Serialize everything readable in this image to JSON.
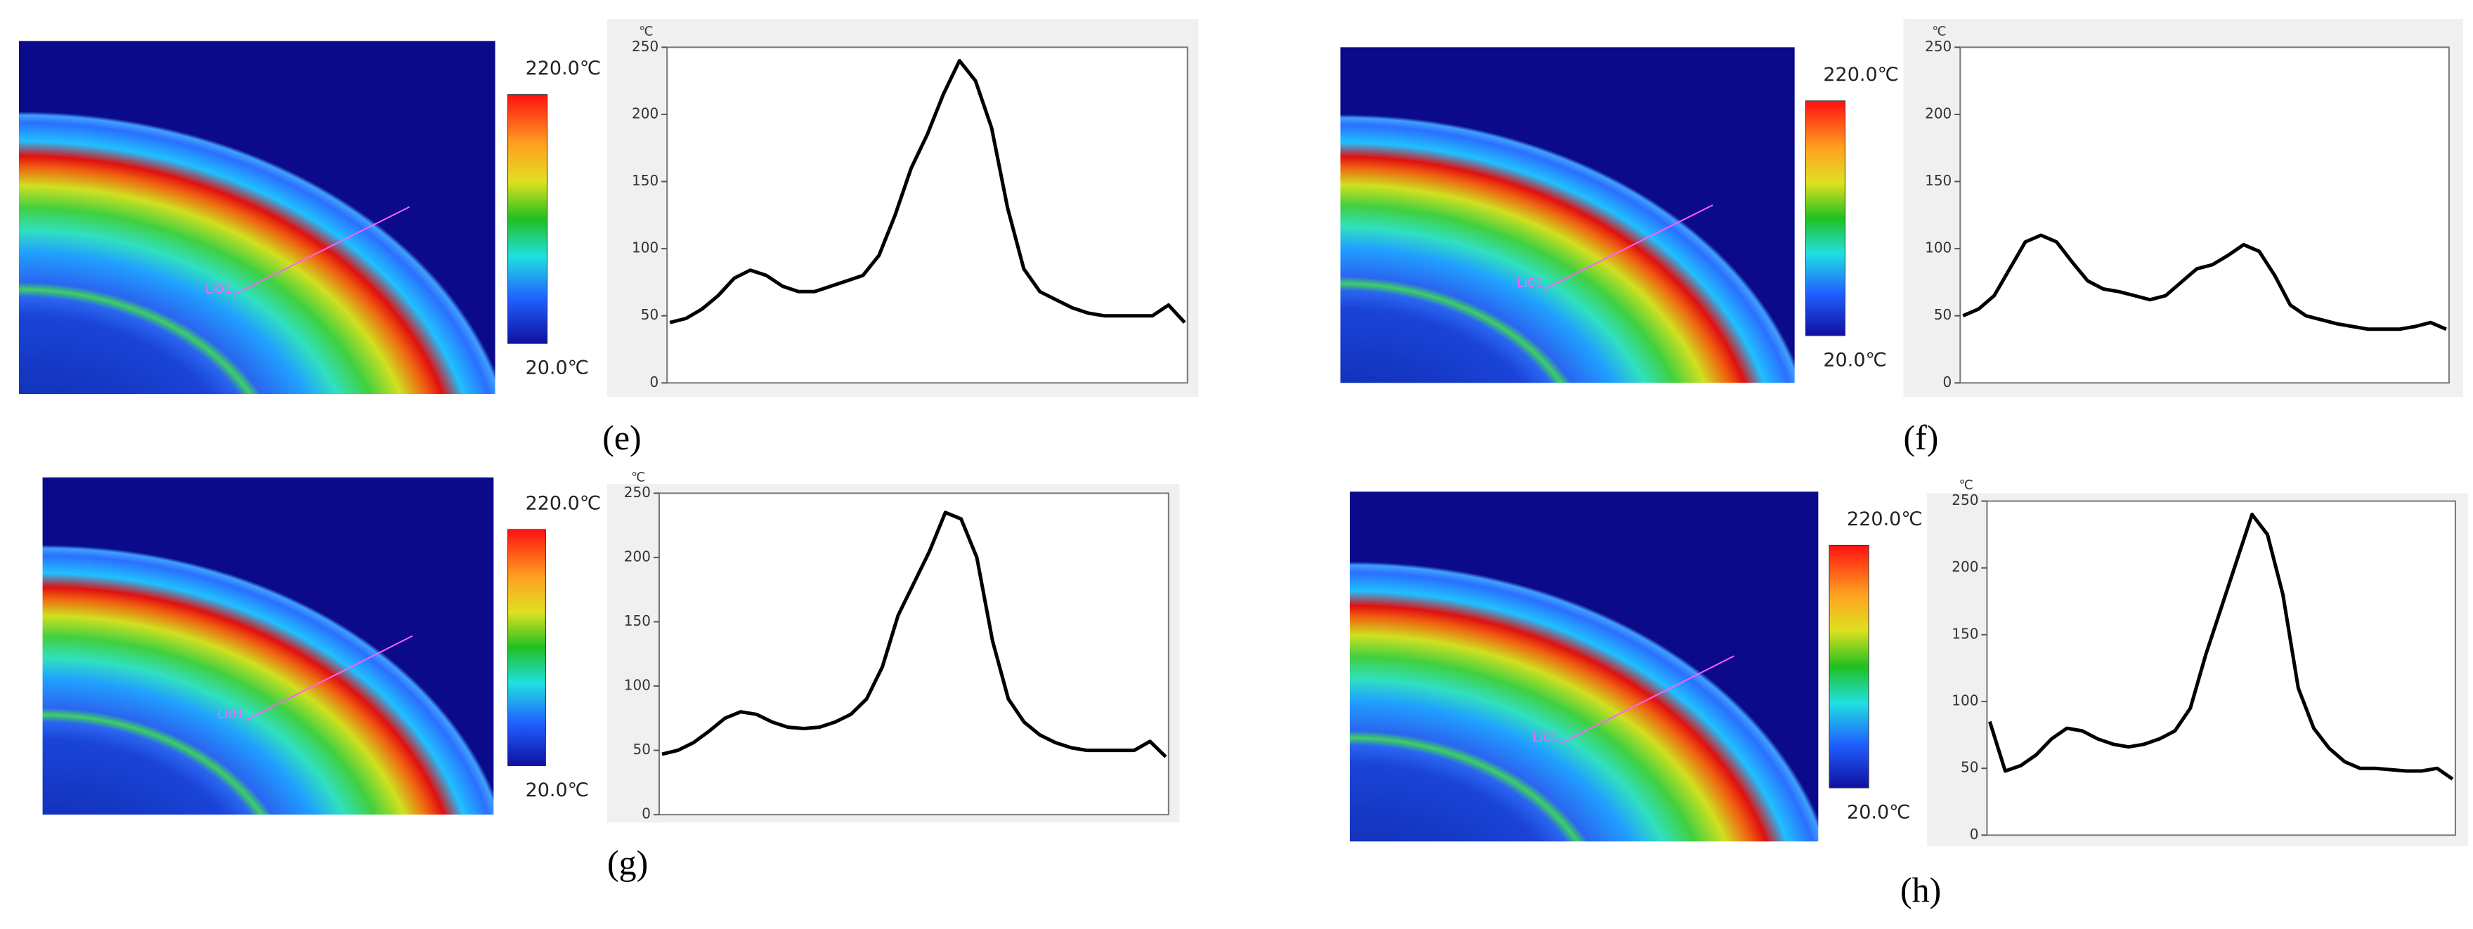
{
  "chart_data": [
    {
      "type": "line",
      "panel_label": "(e)",
      "colorbar_max": "220.0℃",
      "colorbar_min": "20.0℃",
      "line_label": "Li01",
      "y_unit": "℃",
      "color": "#000000",
      "ylim": [
        0,
        250
      ],
      "yticks": [
        0,
        50,
        100,
        150,
        200,
        250
      ],
      "values": [
        45,
        48,
        55,
        65,
        78,
        84,
        80,
        72,
        68,
        68,
        72,
        76,
        80,
        95,
        125,
        160,
        185,
        215,
        240,
        225,
        190,
        130,
        85,
        68,
        62,
        56,
        52,
        50,
        50,
        50,
        50,
        58,
        45
      ]
    },
    {
      "type": "line",
      "panel_label": "(f)",
      "colorbar_max": "220.0℃",
      "colorbar_min": "20.0℃",
      "line_label": "Li01",
      "y_unit": "℃",
      "color": "#000000",
      "ylim": [
        0,
        250
      ],
      "yticks": [
        0,
        50,
        100,
        150,
        200,
        250
      ],
      "values": [
        50,
        55,
        65,
        85,
        105,
        110,
        105,
        90,
        76,
        70,
        68,
        65,
        62,
        65,
        75,
        85,
        88,
        95,
        103,
        98,
        80,
        58,
        50,
        47,
        44,
        42,
        40,
        40,
        40,
        42,
        45,
        40
      ]
    },
    {
      "type": "line",
      "panel_label": "(g)",
      "colorbar_max": "220.0℃",
      "colorbar_min": "20.0℃",
      "line_label": "Li01",
      "y_unit": "℃",
      "color": "#000000",
      "ylim": [
        0,
        250
      ],
      "yticks": [
        0,
        50,
        100,
        150,
        200,
        250
      ],
      "values": [
        47,
        50,
        56,
        65,
        75,
        80,
        78,
        72,
        68,
        67,
        68,
        72,
        78,
        90,
        115,
        155,
        180,
        205,
        235,
        230,
        200,
        135,
        90,
        72,
        62,
        56,
        52,
        50,
        50,
        50,
        50,
        57,
        45
      ]
    },
    {
      "type": "line",
      "panel_label": "(h)",
      "colorbar_max": "220.0℃",
      "colorbar_min": "20.0℃",
      "line_label": "Li01",
      "y_unit": "℃",
      "color": "#000000",
      "ylim": [
        0,
        250
      ],
      "yticks": [
        0,
        50,
        100,
        150,
        200,
        250
      ],
      "values": [
        85,
        48,
        52,
        60,
        72,
        80,
        78,
        72,
        68,
        66,
        68,
        72,
        78,
        95,
        135,
        170,
        205,
        240,
        225,
        180,
        110,
        80,
        65,
        55,
        50,
        50,
        49,
        48,
        48,
        50,
        42
      ]
    }
  ]
}
